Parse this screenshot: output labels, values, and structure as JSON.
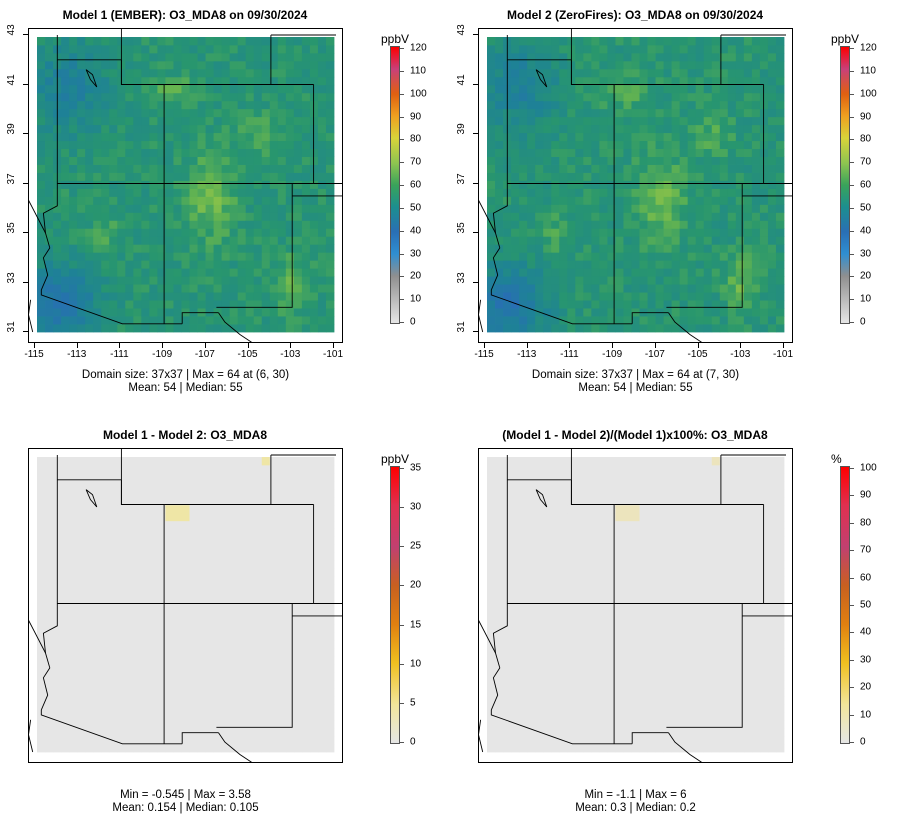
{
  "panels": [
    {
      "id": "p1",
      "title": "Model 1 (EMBER): O3_MDA8 on 09/30/2024",
      "unit": "ppbV",
      "type": "concentration",
      "colorbar": {
        "min": 0,
        "max": 120,
        "ticks": [
          "0",
          "10",
          "20",
          "30",
          "40",
          "50",
          "60",
          "70",
          "80",
          "90",
          "100",
          "110",
          "120"
        ]
      },
      "x_ticks": [
        "-115",
        "-113",
        "-111",
        "-109",
        "-107",
        "-105",
        "-103",
        "-101"
      ],
      "y_ticks": [
        "31",
        "33",
        "35",
        "37",
        "39",
        "41",
        "43"
      ],
      "stats_line1": "Domain size: 37x37 | Max = 64 at (6, 30)",
      "stats_line2": "Mean: 54 |  Median: 55"
    },
    {
      "id": "p2",
      "title": "Model 2 (ZeroFires): O3_MDA8 on 09/30/2024",
      "unit": "ppbV",
      "type": "concentration",
      "colorbar": {
        "min": 0,
        "max": 120,
        "ticks": [
          "0",
          "10",
          "20",
          "30",
          "40",
          "50",
          "60",
          "70",
          "80",
          "90",
          "100",
          "110",
          "120"
        ]
      },
      "x_ticks": [
        "-115",
        "-113",
        "-111",
        "-109",
        "-107",
        "-105",
        "-103",
        "-101"
      ],
      "y_ticks": [
        "31",
        "33",
        "35",
        "37",
        "39",
        "41",
        "43"
      ],
      "stats_line1": "Domain size: 37x37 | Max = 64 at (7, 30)",
      "stats_line2": "Mean: 54 |  Median: 55"
    },
    {
      "id": "p3",
      "title": "Model 1 - Model 2: O3_MDA8",
      "unit": "ppbV",
      "type": "difference",
      "colorbar": {
        "min": 0,
        "max": 35,
        "ticks": [
          "0",
          "5",
          "10",
          "15",
          "20",
          "25",
          "30",
          "35"
        ]
      },
      "x_ticks": [],
      "y_ticks": [],
      "stats_line1": "Min = -0.545 | Max = 3.58",
      "stats_line2": "Mean: 0.154 |  Median: 0.105"
    },
    {
      "id": "p4",
      "title": "(Model 1 - Model 2)/(Model 1)x100%: O3_MDA8",
      "unit": "%",
      "type": "difference",
      "colorbar": {
        "min": 0,
        "max": 100,
        "ticks": [
          "0",
          "10",
          "20",
          "30",
          "40",
          "50",
          "60",
          "70",
          "80",
          "90",
          "100"
        ]
      },
      "x_ticks": [],
      "y_ticks": [],
      "stats_line1": "Min = -1.1 | Max = 6",
      "stats_line2": "Mean: 0.3 |  Median: 0.2"
    }
  ],
  "map": {
    "lon_range": [
      -115,
      -101
    ],
    "lat_range": [
      31,
      43
    ]
  },
  "colors": {
    "concentration_scale": [
      "#e6e6e6",
      "#bdbdbd",
      "#8f8f8f",
      "#2f8fd1",
      "#2a6fb5",
      "#1c8f8f",
      "#3aa35a",
      "#8fc450",
      "#d8d43a",
      "#f0a020",
      "#e06010",
      "#c8407a",
      "#ff0000"
    ],
    "difference_scale": [
      "#e6e6e6",
      "#f2e59a",
      "#f0c020",
      "#e08010",
      "#c86020",
      "#c04070",
      "#e03050",
      "#ff0000"
    ]
  }
}
